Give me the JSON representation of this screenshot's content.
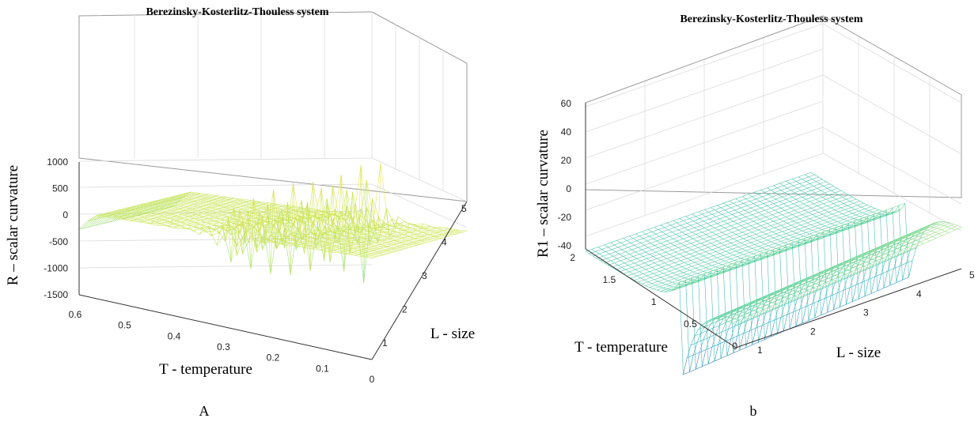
{
  "chart_data": [
    {
      "type": "surface",
      "panel": "A",
      "title": "Berezinsky-Kosterlitz-Thouless system",
      "xlabel": "T - temperature",
      "ylabel": "L - size",
      "zlabel": "R – scalar curvature",
      "caption": "A",
      "x_ticks": [
        "0.6",
        "0.5",
        "0.4",
        "0.3",
        "0.2",
        "0.1",
        "0"
      ],
      "y_ticks": [
        "1",
        "2",
        "3",
        "4",
        "5"
      ],
      "z_ticks": [
        "1000",
        "500",
        "0",
        "-500",
        "-1000",
        "-1500"
      ],
      "xlim": [
        0,
        0.6
      ],
      "ylim": [
        1,
        5
      ],
      "zlim": [
        -1500,
        1000
      ],
      "grid": true,
      "colormap": [
        "#2a3fa8",
        "#21a0c8",
        "#5ad39c",
        "#cde55a",
        "#f8e33a"
      ]
    },
    {
      "type": "surface",
      "panel": "b",
      "title": "Berezinsky-Kosterlitz-Thouless system",
      "xlabel": "T - temperature",
      "ylabel": "L - size",
      "zlabel": "R1 – scalar curvature",
      "caption": "b",
      "x_ticks": [
        "2",
        "1.5",
        "1",
        "0.5",
        "0"
      ],
      "y_ticks": [
        "1",
        "2",
        "3",
        "4",
        "5"
      ],
      "z_ticks": [
        "60",
        "40",
        "20",
        "0",
        "-20",
        "-40"
      ],
      "xlim": [
        0,
        2
      ],
      "ylim": [
        1,
        5
      ],
      "zlim": [
        -40,
        60
      ],
      "grid": true,
      "colormap": [
        "#2a3fa8",
        "#21a0c8",
        "#5ad39c",
        "#cde55a",
        "#f8e33a"
      ]
    }
  ]
}
